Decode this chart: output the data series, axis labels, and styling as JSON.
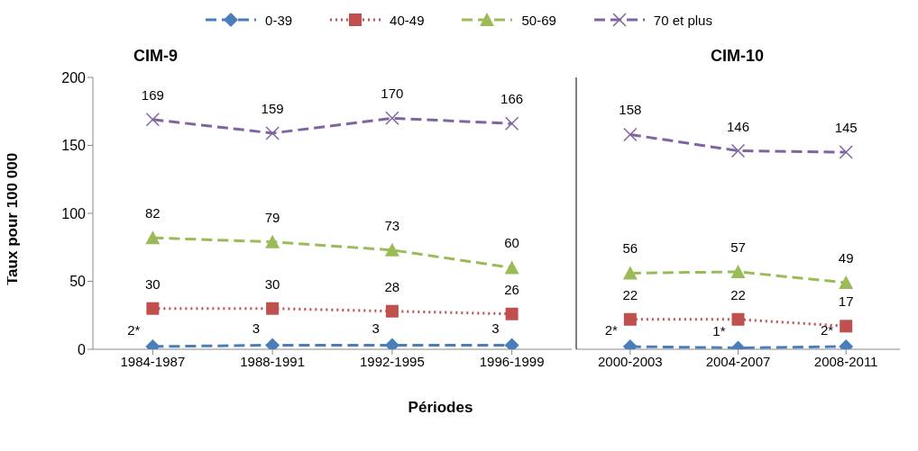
{
  "chart_data": [
    {
      "type": "line",
      "title": "CIM-9",
      "ylabel": "Taux pour 100 000",
      "xlabel": "Périodes",
      "categories": [
        "1984-1987",
        "1988-1991",
        "1992-1995",
        "1996-1999"
      ],
      "ylim": [
        0,
        200
      ],
      "yticks": [
        0,
        50,
        100,
        150,
        200
      ],
      "legend": "top",
      "series": [
        {
          "name": "0-39",
          "color": "#4a7ebb",
          "marker": "diamond",
          "line_style": "dashed",
          "values": [
            2,
            3,
            3,
            3
          ],
          "value_labels": [
            "2*",
            "3",
            "3",
            "3"
          ]
        },
        {
          "name": "40-49",
          "color": "#c0504d",
          "marker": "square",
          "line_style": "dotted",
          "values": [
            30,
            30,
            28,
            26
          ]
        },
        {
          "name": "50-69",
          "color": "#9bbb59",
          "marker": "triangle",
          "line_style": "dashed",
          "values": [
            82,
            79,
            73,
            60
          ]
        },
        {
          "name": "70 et plus",
          "color": "#8064a2",
          "marker": "cross",
          "line_style": "dashed",
          "values": [
            169,
            159,
            170,
            166
          ]
        }
      ],
      "data_labels": true
    },
    {
      "type": "line",
      "title": "CIM-10",
      "categories": [
        "2000-2003",
        "2004-2007",
        "2008-2011"
      ],
      "ylim": [
        0,
        200
      ],
      "tick_labels": "x",
      "series": [
        {
          "color": "#4a7ebb",
          "marker": "diamond",
          "line_style": "dashed",
          "values": [
            2,
            1,
            2
          ],
          "value_labels": [
            "2*",
            "1*",
            "2*"
          ]
        },
        {
          "color": "#c0504d",
          "marker": "square",
          "line_style": "dotted",
          "values": [
            22,
            22,
            17
          ]
        },
        {
          "color": "#9bbb59",
          "marker": "triangle",
          "line_style": "dashed",
          "values": [
            56,
            57,
            49
          ]
        },
        {
          "color": "#8064a2",
          "marker": "cross",
          "line_style": "dashed",
          "values": [
            158,
            146,
            145
          ]
        }
      ],
      "data_labels": true
    }
  ]
}
